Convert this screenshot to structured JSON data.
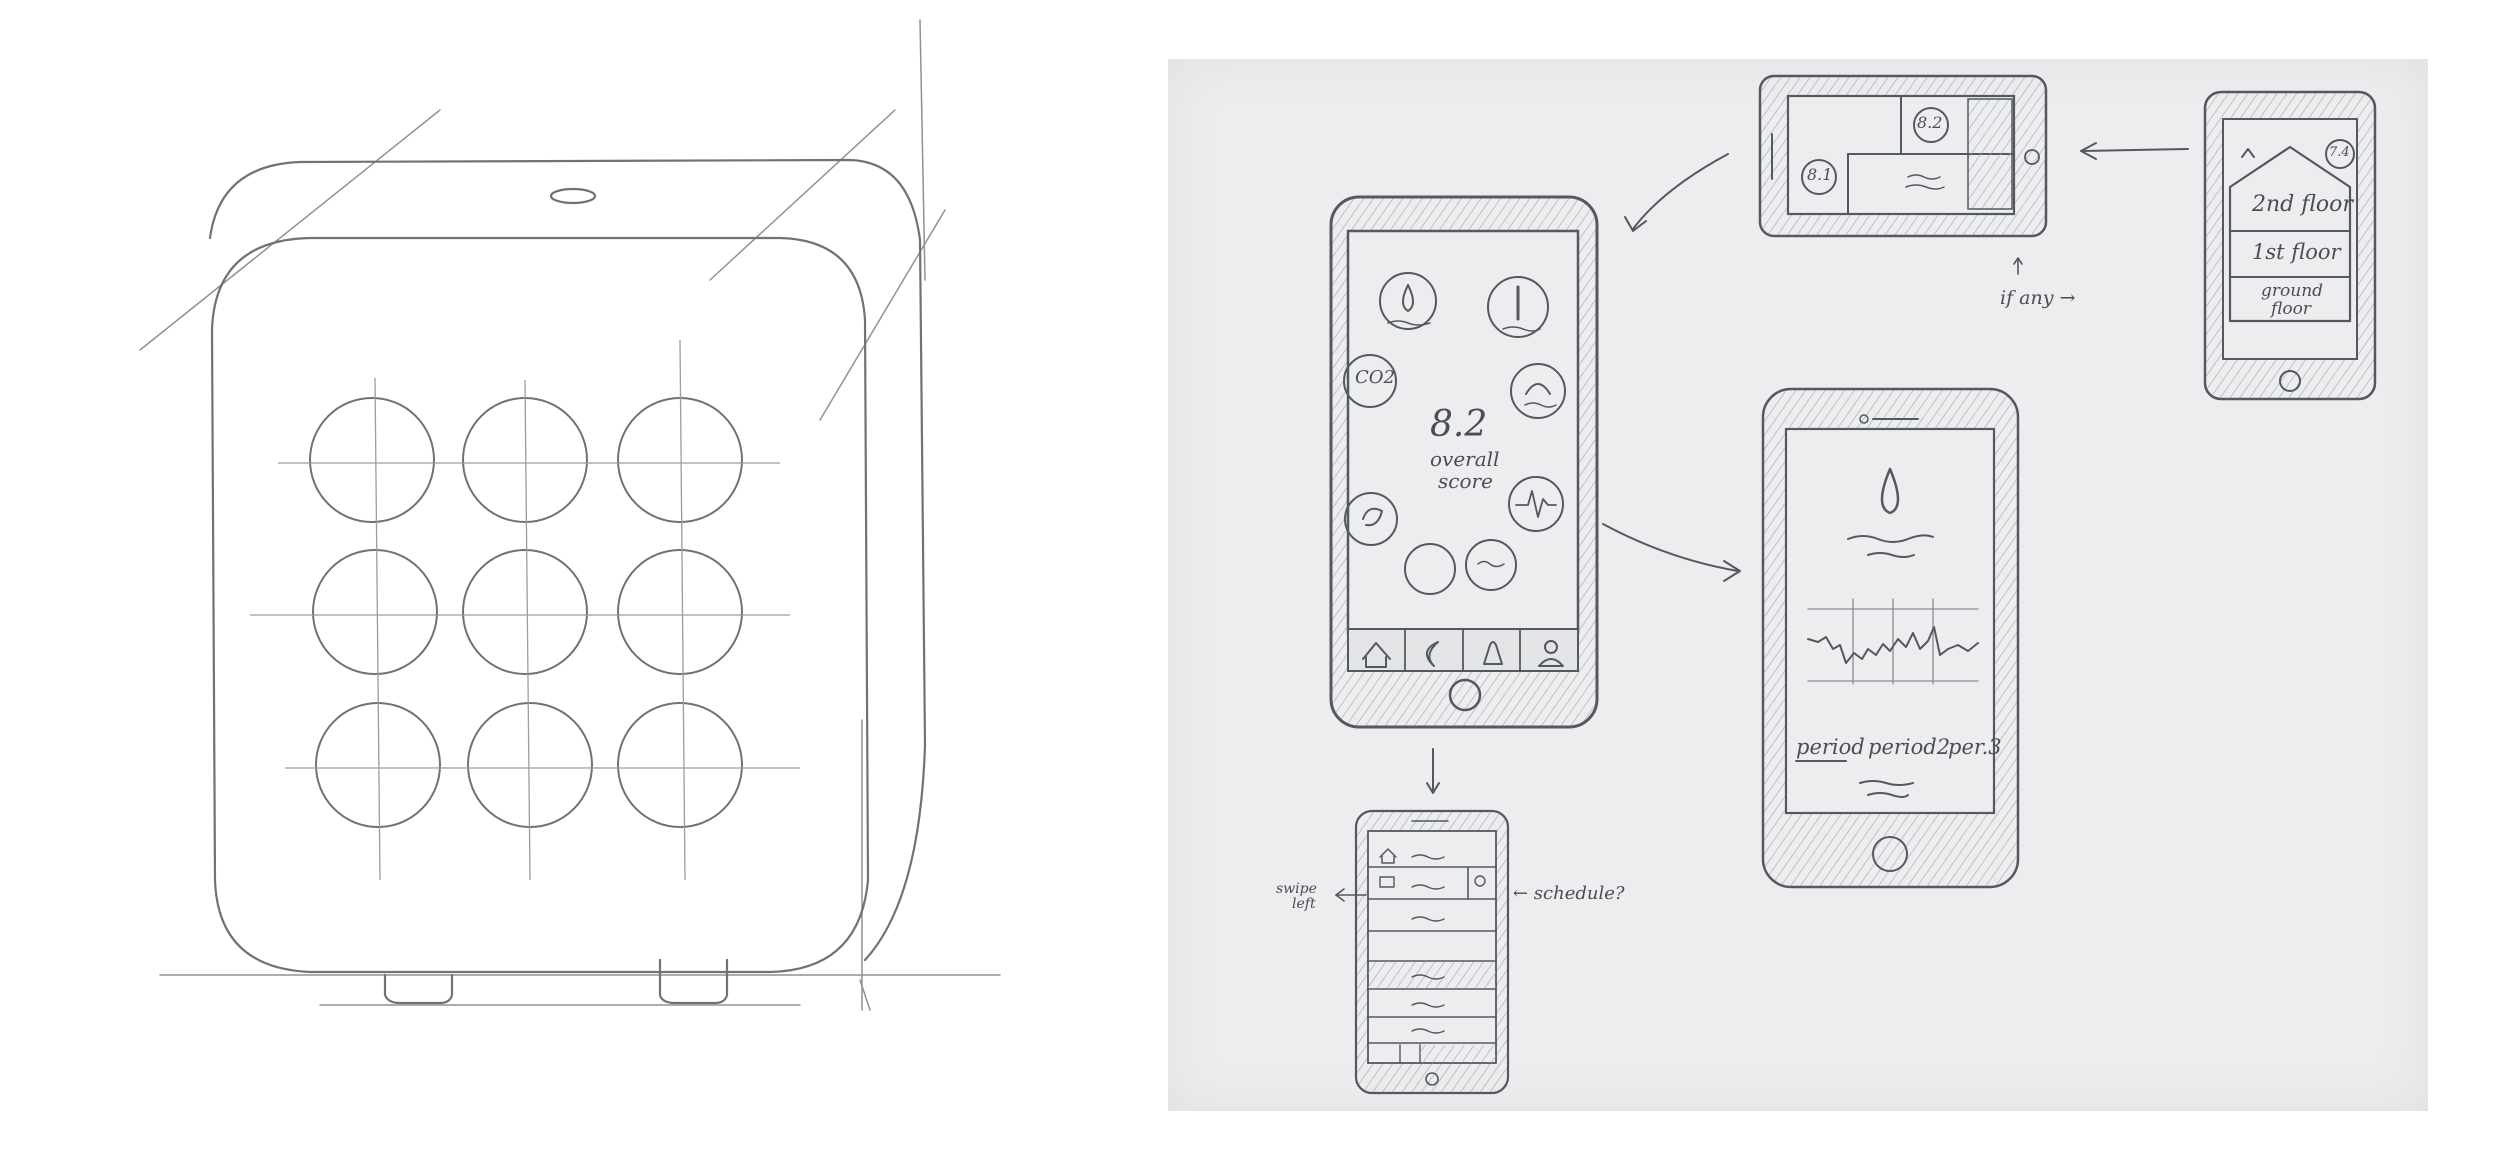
{
  "sketch": {
    "score": "8.2",
    "score_caption_line1": "overall",
    "score_caption_line2": "score",
    "co2_label": "CO2",
    "landscape_score_a": "8.2",
    "landscape_score_b": "8.1",
    "floors": {
      "badge": "7.4",
      "second": "2nd floor",
      "first": "1st floor",
      "ground_line1": "ground",
      "ground_line2": "floor"
    },
    "if_any": "if any →",
    "periods": {
      "p1": "period",
      "p2": "period2",
      "p3": "per.3"
    },
    "swipe_left_line1": "swipe",
    "swipe_left_line2": "left",
    "schedule": "← schedule?"
  },
  "colors": {
    "paper": "#ecedef",
    "pencil": "#55585d",
    "line": "#6f7276"
  }
}
